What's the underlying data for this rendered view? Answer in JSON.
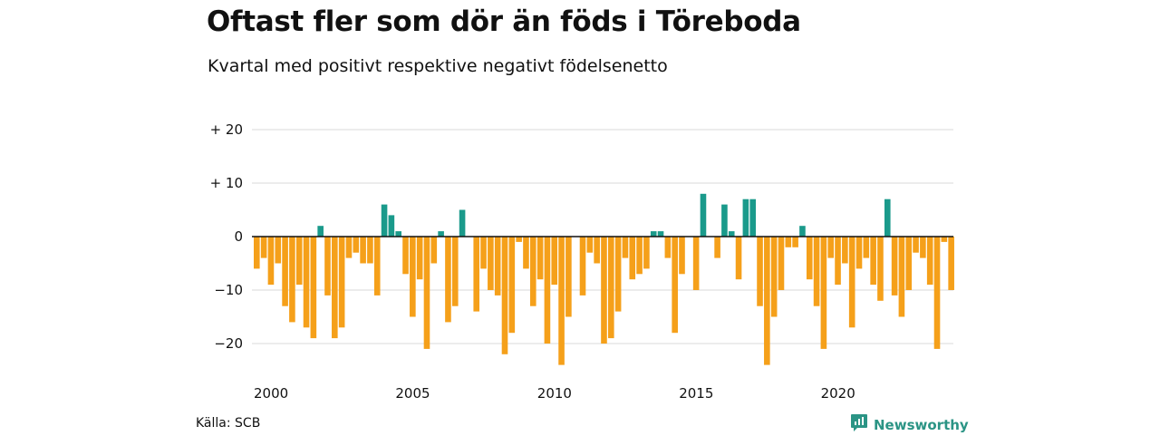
{
  "header": {
    "title": "Oftast fler som dör än föds i Töreboda",
    "subtitle": "Kvartal med positivt respektive negativt födelsenetto"
  },
  "footer": {
    "source": "Källa: SCB",
    "brand": "Newsworthy",
    "brand_icon": "newsworthy-logo-icon"
  },
  "colors": {
    "positive": "#1a9a8b",
    "negative": "#f5a01a",
    "grid": "#d9d9d9",
    "zero_line": "#111111",
    "brand": "#2b9485"
  },
  "chart_data": {
    "type": "bar",
    "title": "Oftast fler som dör än föds i Töreboda",
    "subtitle": "Kvartal med positivt respektive negativt födelsenetto",
    "xlabel": "",
    "ylabel": "",
    "ylim": [
      -25,
      20
    ],
    "y_ticks": [
      {
        "value": 20,
        "label": "+ 20"
      },
      {
        "value": 10,
        "label": "+ 10"
      },
      {
        "value": 0,
        "label": "0"
      },
      {
        "value": -10,
        "label": "−10"
      },
      {
        "value": -20,
        "label": "−20"
      }
    ],
    "x_ticks": [
      {
        "year": 2000,
        "label": "2000"
      },
      {
        "year": 2005,
        "label": "2005"
      },
      {
        "year": 2010,
        "label": "2010"
      },
      {
        "year": 2015,
        "label": "2015"
      },
      {
        "year": 2020,
        "label": "2020"
      }
    ],
    "grid": true,
    "legend": "none",
    "start_year": 2000,
    "quarters_per_year": 4,
    "values": [
      -6,
      -4,
      -9,
      -5,
      -13,
      -16,
      -9,
      -17,
      -19,
      2,
      -11,
      -19,
      -17,
      -4,
      -3,
      -5,
      -5,
      -11,
      6,
      4,
      1,
      -7,
      -15,
      -8,
      -21,
      -5,
      1,
      -16,
      -13,
      5,
      0,
      -14,
      -6,
      -10,
      -11,
      -22,
      -18,
      -1,
      -6,
      -13,
      -8,
      -20,
      -9,
      -24,
      -15,
      0,
      -11,
      -3,
      -5,
      -20,
      -19,
      -14,
      -4,
      -8,
      -7,
      -6,
      1,
      1,
      -4,
      -18,
      -7,
      0,
      -10,
      8,
      0,
      -4,
      6,
      1,
      -8,
      7,
      7,
      -13,
      -24,
      -15,
      -10,
      -2,
      -2,
      2,
      -8,
      -13,
      -21,
      -4,
      -9,
      -5,
      -17,
      -6,
      -4,
      -9,
      -12,
      7,
      -11,
      -15,
      -10,
      -3,
      -4,
      -9,
      -21,
      -1,
      -10
    ]
  }
}
